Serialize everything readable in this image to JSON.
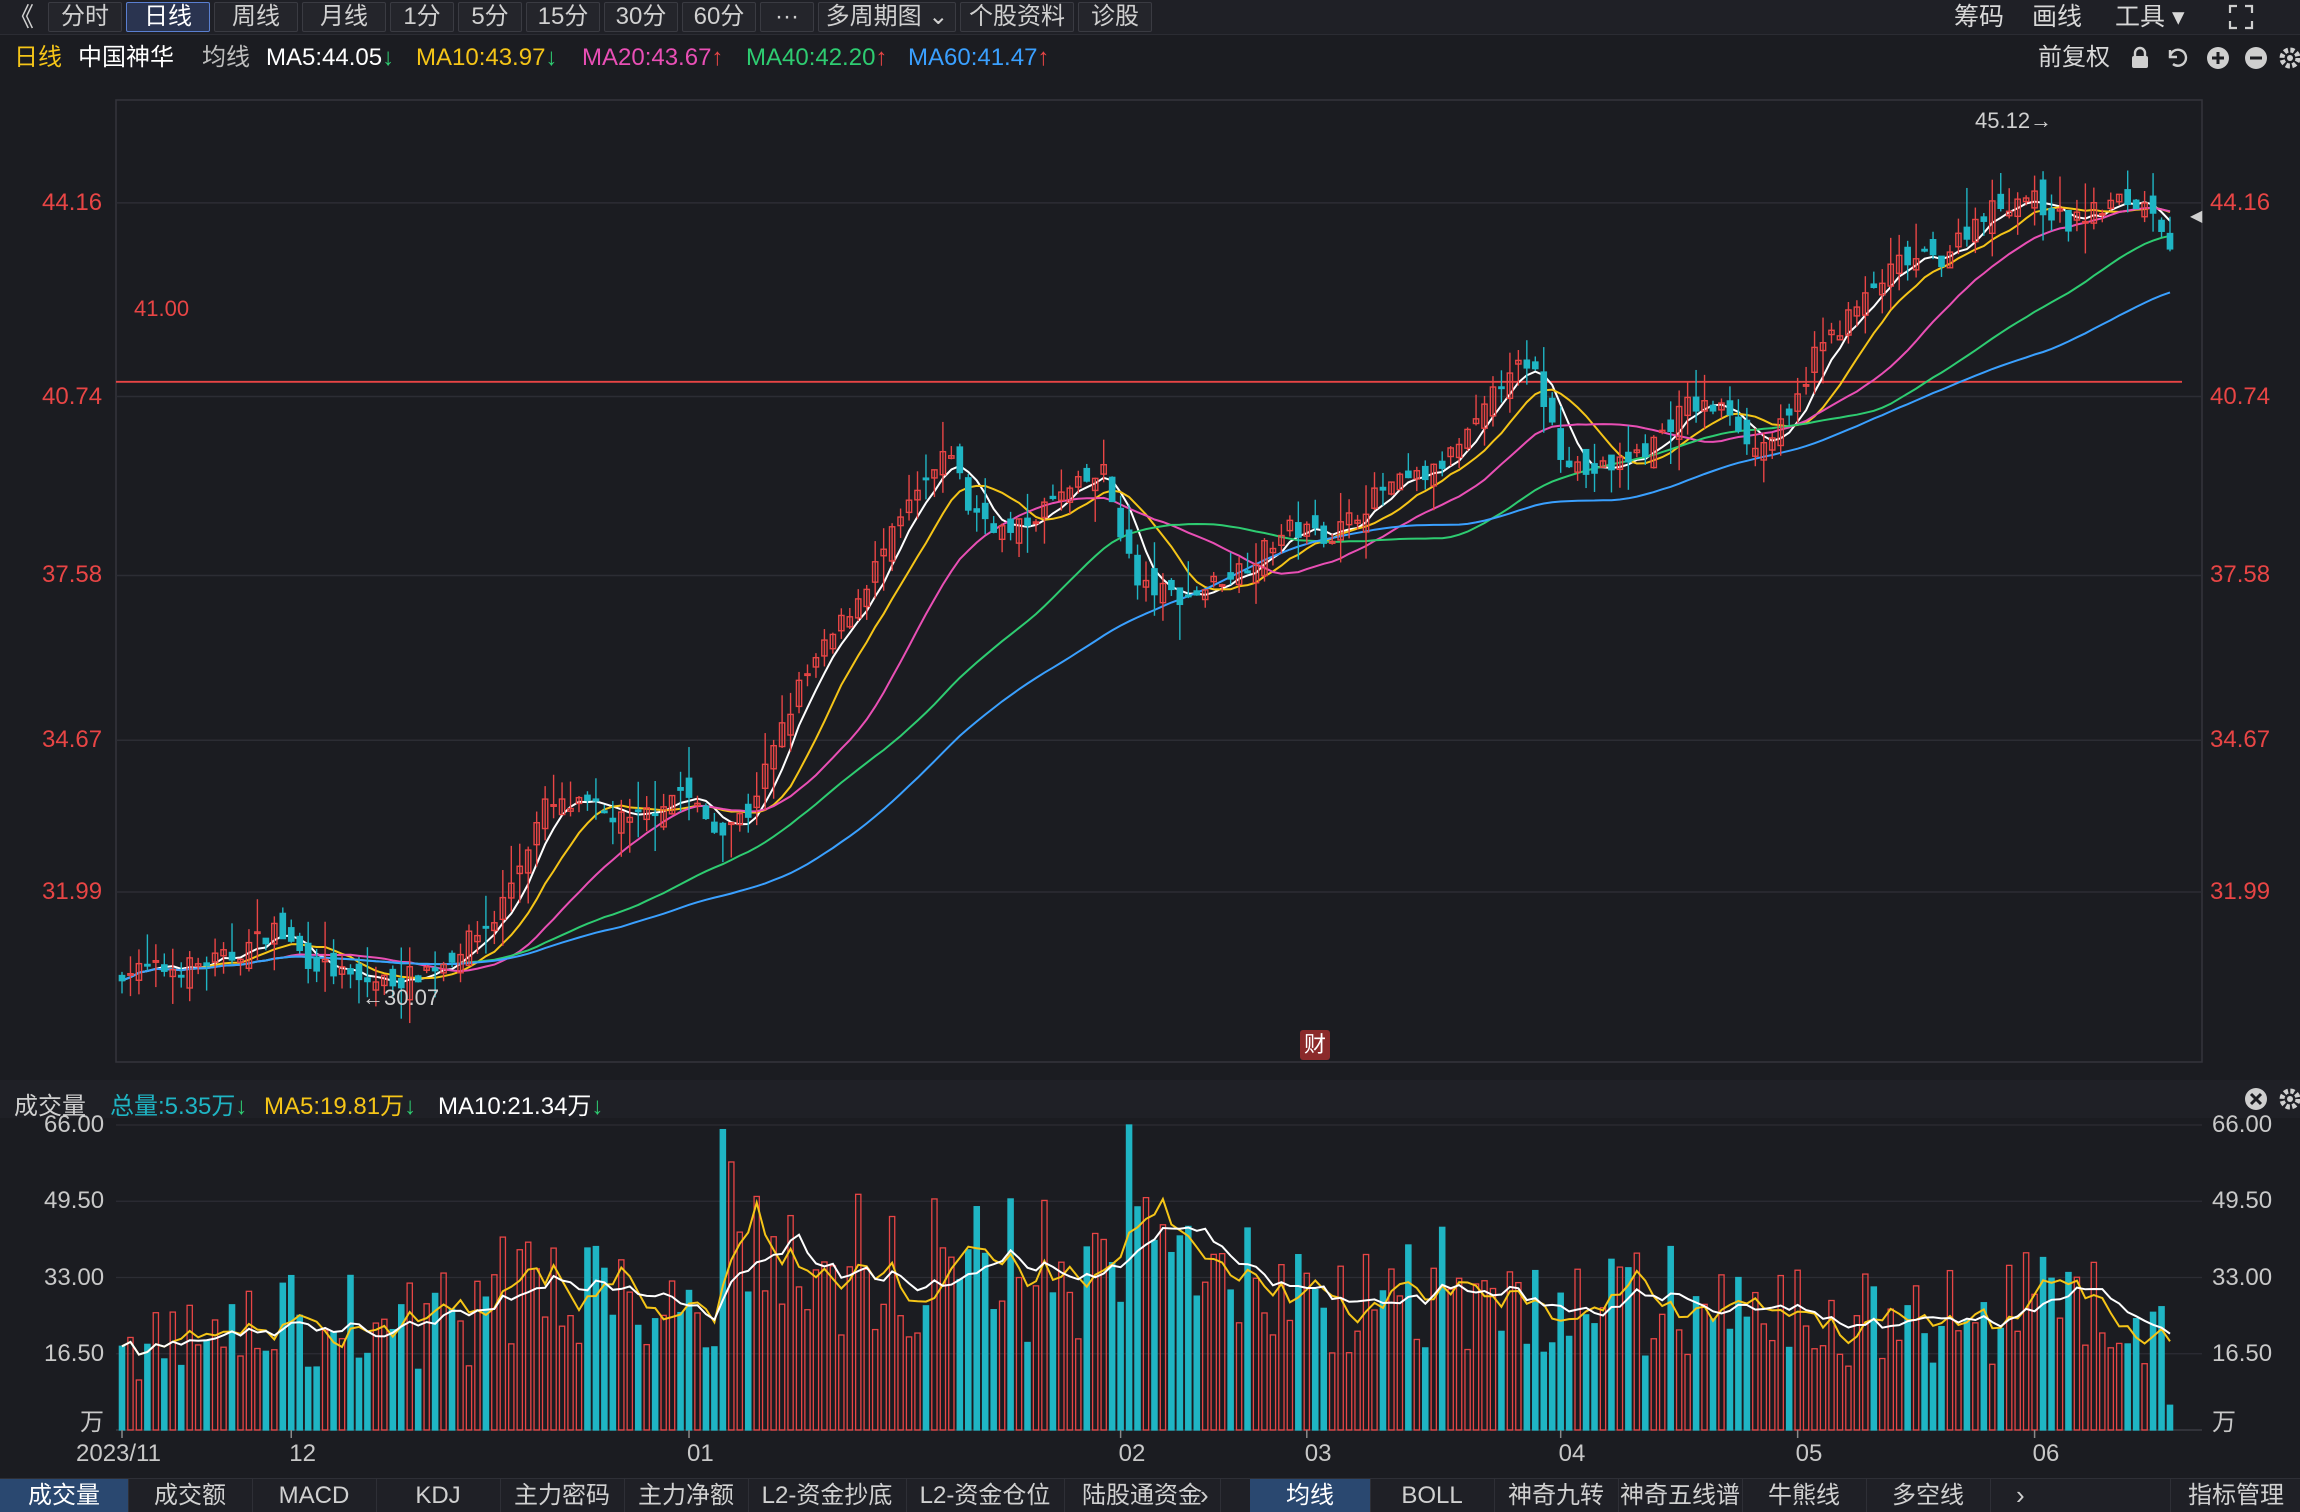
{
  "toolbar": {
    "back_glyph": "《",
    "periods": [
      "分时",
      "日线",
      "周线",
      "月线",
      "1分",
      "5分",
      "15分",
      "30分",
      "60分",
      "···",
      "多周期图 ⌄",
      "个股资料",
      "诊股"
    ],
    "active_period": "日线",
    "right": [
      "筹码",
      "画线",
      "工具 ▾"
    ],
    "fullscreen_icon": "expand-icon"
  },
  "header": {
    "period": "日线",
    "stock_name": "中国神华",
    "ma_label": "均线",
    "ma5": "MA5:44.05",
    "ma10": "MA10:43.97",
    "ma20": "MA20:43.67",
    "ma40": "MA40:42.20",
    "ma60": "MA60:41.47",
    "adjust": "前复权",
    "colors": {
      "ma5": "#ffffff",
      "ma10": "#f5c518",
      "ma20": "#e94fb5",
      "ma40": "#2ecc71",
      "ma60": "#3aa0ff",
      "up": "#e84545",
      "down": "#1fb5c4"
    }
  },
  "price_axis": {
    "labels": [
      "44.16",
      "40.74",
      "37.58",
      "34.67",
      "31.99"
    ]
  },
  "hline": {
    "label": "41.00",
    "value": 41.0
  },
  "markers": {
    "high": "45.12→",
    "low": "←30.07",
    "fin_badge": "财"
  },
  "volume_header": {
    "title": "成交量",
    "total": "总量:5.35万",
    "ma5": "MA5:19.81万",
    "ma10": "MA10:21.34万"
  },
  "volume_axis": {
    "labels": [
      "66.00",
      "49.50",
      "33.00",
      "16.50",
      "万"
    ]
  },
  "dates": [
    "2023/11",
    "12",
    "01",
    "02",
    "03",
    "04",
    "05",
    "06"
  ],
  "bottom_tabs_left": [
    "成交量",
    "成交额",
    "MACD",
    "KDJ",
    "主力密码",
    "主力净额",
    "L2-资金抄底",
    "L2-资金仓位",
    "陆股通资金"
  ],
  "bottom_tabs_right": [
    "均线",
    "BOLL",
    "神奇九转",
    "神奇五线谱",
    "牛熊线",
    "多空线"
  ],
  "indicator_manage": "指标管理",
  "chart_data": {
    "type": "candlestick",
    "y_range": [
      29.2,
      45.8
    ],
    "volume_range": [
      0,
      66
    ],
    "volume_unit": "万",
    "hline_value": 41.0,
    "high_marker": {
      "value": 45.12
    },
    "low_marker": {
      "value": 30.07
    },
    "anchors_close": [
      [
        0,
        30.6
      ],
      [
        7,
        30.65
      ],
      [
        13,
        30.85
      ],
      [
        18,
        31.35
      ],
      [
        22,
        30.8
      ],
      [
        28,
        30.4
      ],
      [
        33,
        30.45
      ],
      [
        38,
        30.75
      ],
      [
        44,
        31.5
      ],
      [
        50,
        33.5
      ],
      [
        55,
        33.5
      ],
      [
        60,
        33.2
      ],
      [
        66,
        33.8
      ],
      [
        70,
        33.1
      ],
      [
        74,
        33.4
      ],
      [
        80,
        35.6
      ],
      [
        87,
        37.2
      ],
      [
        93,
        38.8
      ],
      [
        98,
        39.8
      ],
      [
        100,
        38.8
      ],
      [
        105,
        38.3
      ],
      [
        110,
        38.9
      ],
      [
        116,
        39.4
      ],
      [
        120,
        37.4
      ],
      [
        126,
        37.2
      ],
      [
        133,
        37.8
      ],
      [
        138,
        38.4
      ],
      [
        143,
        38.3
      ],
      [
        149,
        39.1
      ],
      [
        155,
        39.4
      ],
      [
        160,
        40.2
      ],
      [
        164,
        41.3
      ],
      [
        167,
        41.1
      ],
      [
        170,
        39.8
      ],
      [
        173,
        39.4
      ],
      [
        176,
        39.5
      ],
      [
        180,
        39.8
      ],
      [
        185,
        40.6
      ],
      [
        190,
        40.5
      ],
      [
        193,
        39.8
      ],
      [
        197,
        40.3
      ],
      [
        200,
        41.5
      ],
      [
        205,
        42.3
      ],
      [
        210,
        43.1
      ],
      [
        215,
        43.2
      ],
      [
        220,
        44.0
      ],
      [
        225,
        44.3
      ],
      [
        230,
        43.8
      ],
      [
        236,
        44.2
      ],
      [
        240,
        44.1
      ],
      [
        242,
        43.45
      ]
    ],
    "volume_anchors": [
      [
        0,
        17.6
      ],
      [
        10,
        20.0
      ],
      [
        20,
        23.5
      ],
      [
        30,
        23.0
      ],
      [
        40,
        24.0
      ],
      [
        50,
        34.0
      ],
      [
        60,
        32.0
      ],
      [
        68,
        27.0
      ],
      [
        75,
        38.0
      ],
      [
        85,
        31.0
      ],
      [
        95,
        36.0
      ],
      [
        105,
        33.5
      ],
      [
        115,
        35.5
      ],
      [
        125,
        36.5
      ],
      [
        135,
        30.0
      ],
      [
        145,
        29.0
      ],
      [
        155,
        31.5
      ],
      [
        165,
        26.0
      ],
      [
        175,
        27.0
      ],
      [
        185,
        28.0
      ],
      [
        195,
        24.0
      ],
      [
        205,
        24.5
      ],
      [
        215,
        24.0
      ],
      [
        225,
        27.0
      ],
      [
        235,
        25.0
      ],
      [
        242,
        19.8
      ]
    ],
    "last_volume": 5.35,
    "ma_periods": [
      5,
      10,
      20,
      40,
      60
    ],
    "series_names": [
      "MA5",
      "MA10",
      "MA20",
      "MA40",
      "MA60"
    ],
    "date_ticks": [
      "2023/11",
      "12",
      "01",
      "02",
      "03",
      "04",
      "05",
      "06"
    ]
  }
}
